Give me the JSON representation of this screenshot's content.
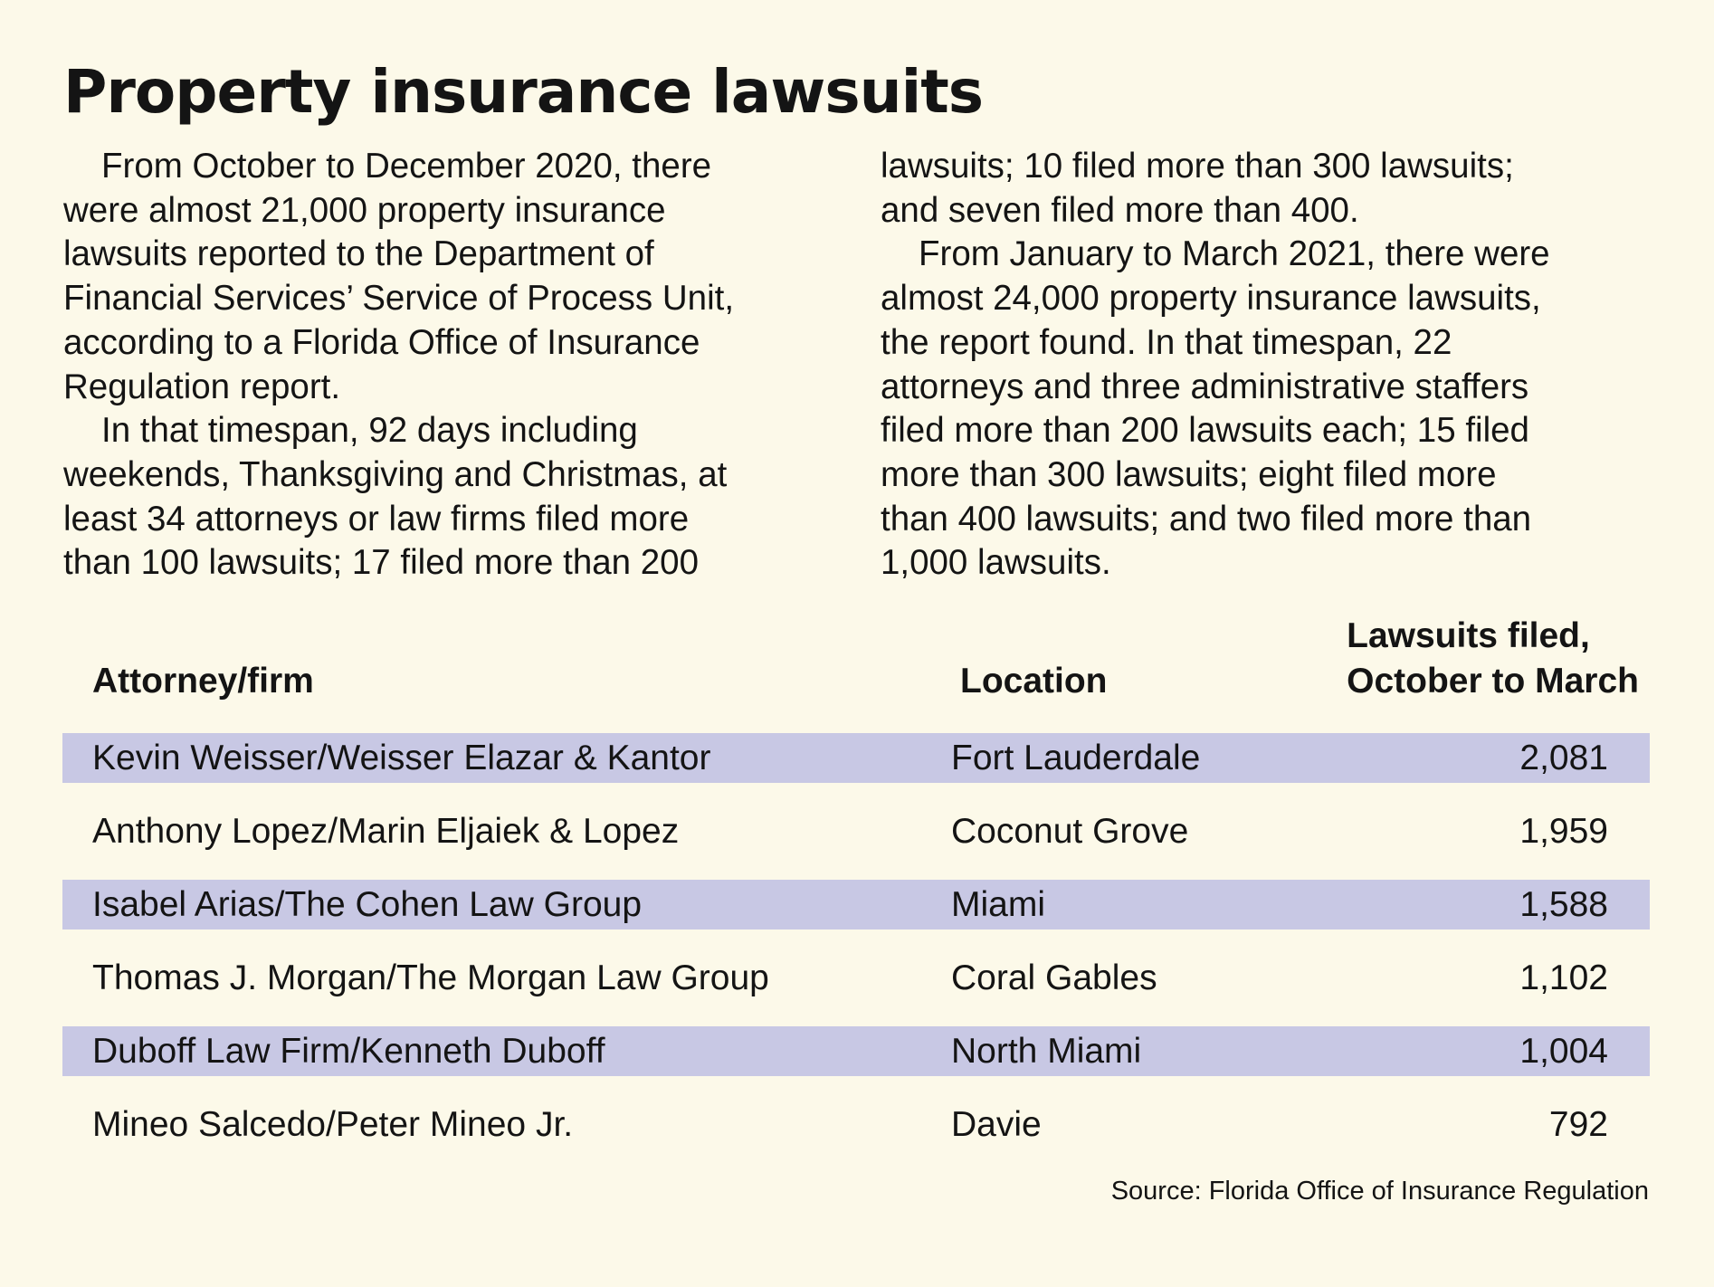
{
  "title": "Property insurance lawsuits",
  "paragraphs": {
    "p1": "From October to December 2020, there\nwere almost 21,000 property insurance\nlawsuits reported to the Department of\nFinancial Services’ Service of Process Unit,\naccording to a Florida Office of Insurance\nRegulation report.",
    "p2": "In that timespan, 92 days including\nweekends, Thanksgiving and Christmas, at\nleast 34 attorneys or law firms filed more\nthan 100 lawsuits; 17 filed more than 200",
    "p2_cont": "lawsuits; 10 filed more than 300 lawsuits;\nand seven filed more than 400.",
    "p3": "From January to March 2021, there were\nalmost 24,000 property insurance lawsuits,\nthe report found. In that timespan, 22\nattorneys and three administrative staffers\nfiled more than 200 lawsuits each; 15 filed\nmore than 300 lawsuits; eight filed more\nthan 400 lawsuits; and two filed more than\n1,000 lawsuits."
  },
  "table": {
    "headers": {
      "name": "Attorney/firm",
      "location": "Location",
      "count": "Lawsuits filed,\nOctober to March"
    },
    "rows": [
      {
        "name": "Kevin Weisser/Weisser Elazar & Kantor",
        "location": "Fort Lauderdale",
        "count": "2,081"
      },
      {
        "name": "Anthony Lopez/Marin Eljaiek & Lopez",
        "location": "Coconut Grove",
        "count": "1,959"
      },
      {
        "name": "Isabel Arias/The Cohen Law Group",
        "location": "Miami",
        "count": "1,588"
      },
      {
        "name": "Thomas J. Morgan/The Morgan Law Group",
        "location": "Coral Gables",
        "count": "1,102"
      },
      {
        "name": "Duboff Law Firm/Kenneth Duboff",
        "location": "North Miami",
        "count": "1,004"
      },
      {
        "name": "Mineo Salcedo/Peter Mineo Jr.",
        "location": "Davie",
        "count": "792"
      }
    ]
  },
  "source": "Source: Florida Office of Insurance Regulation",
  "colors": {
    "background": "#fcf9e9",
    "row_shade": "#c8c8e4",
    "text": "#141414"
  }
}
